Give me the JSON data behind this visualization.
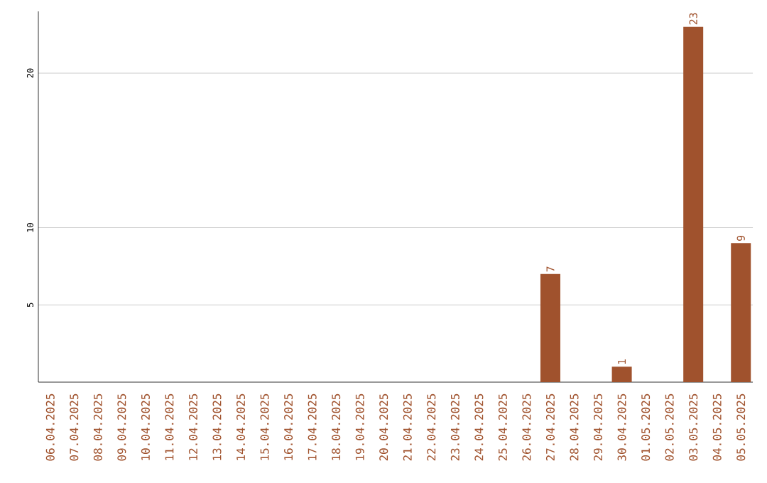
{
  "chart_data": {
    "type": "bar",
    "categories": [
      "06.04.2025",
      "07.04.2025",
      "08.04.2025",
      "09.04.2025",
      "10.04.2025",
      "11.04.2025",
      "12.04.2025",
      "13.04.2025",
      "14.04.2025",
      "15.04.2025",
      "16.04.2025",
      "17.04.2025",
      "18.04.2025",
      "19.04.2025",
      "20.04.2025",
      "21.04.2025",
      "22.04.2025",
      "23.04.2025",
      "24.04.2025",
      "25.04.2025",
      "26.04.2025",
      "27.04.2025",
      "28.04.2025",
      "29.04.2025",
      "30.04.2025",
      "01.05.2025",
      "02.05.2025",
      "03.05.2025",
      "04.05.2025",
      "05.05.2025"
    ],
    "values": [
      0,
      0,
      0,
      0,
      0,
      0,
      0,
      0,
      0,
      0,
      0,
      0,
      0,
      0,
      0,
      0,
      0,
      0,
      0,
      0,
      0,
      7,
      0,
      0,
      1,
      0,
      0,
      23,
      0,
      9
    ],
    "value_labels": [
      null,
      null,
      null,
      null,
      null,
      null,
      null,
      null,
      null,
      null,
      null,
      null,
      null,
      null,
      null,
      null,
      null,
      null,
      null,
      null,
      null,
      "7",
      null,
      null,
      "1",
      null,
      null,
      "23",
      null,
      "9"
    ],
    "color": "#a0522d",
    "ylim": [
      0,
      24
    ],
    "yticks": [
      5,
      10,
      20
    ],
    "grid": "y"
  }
}
